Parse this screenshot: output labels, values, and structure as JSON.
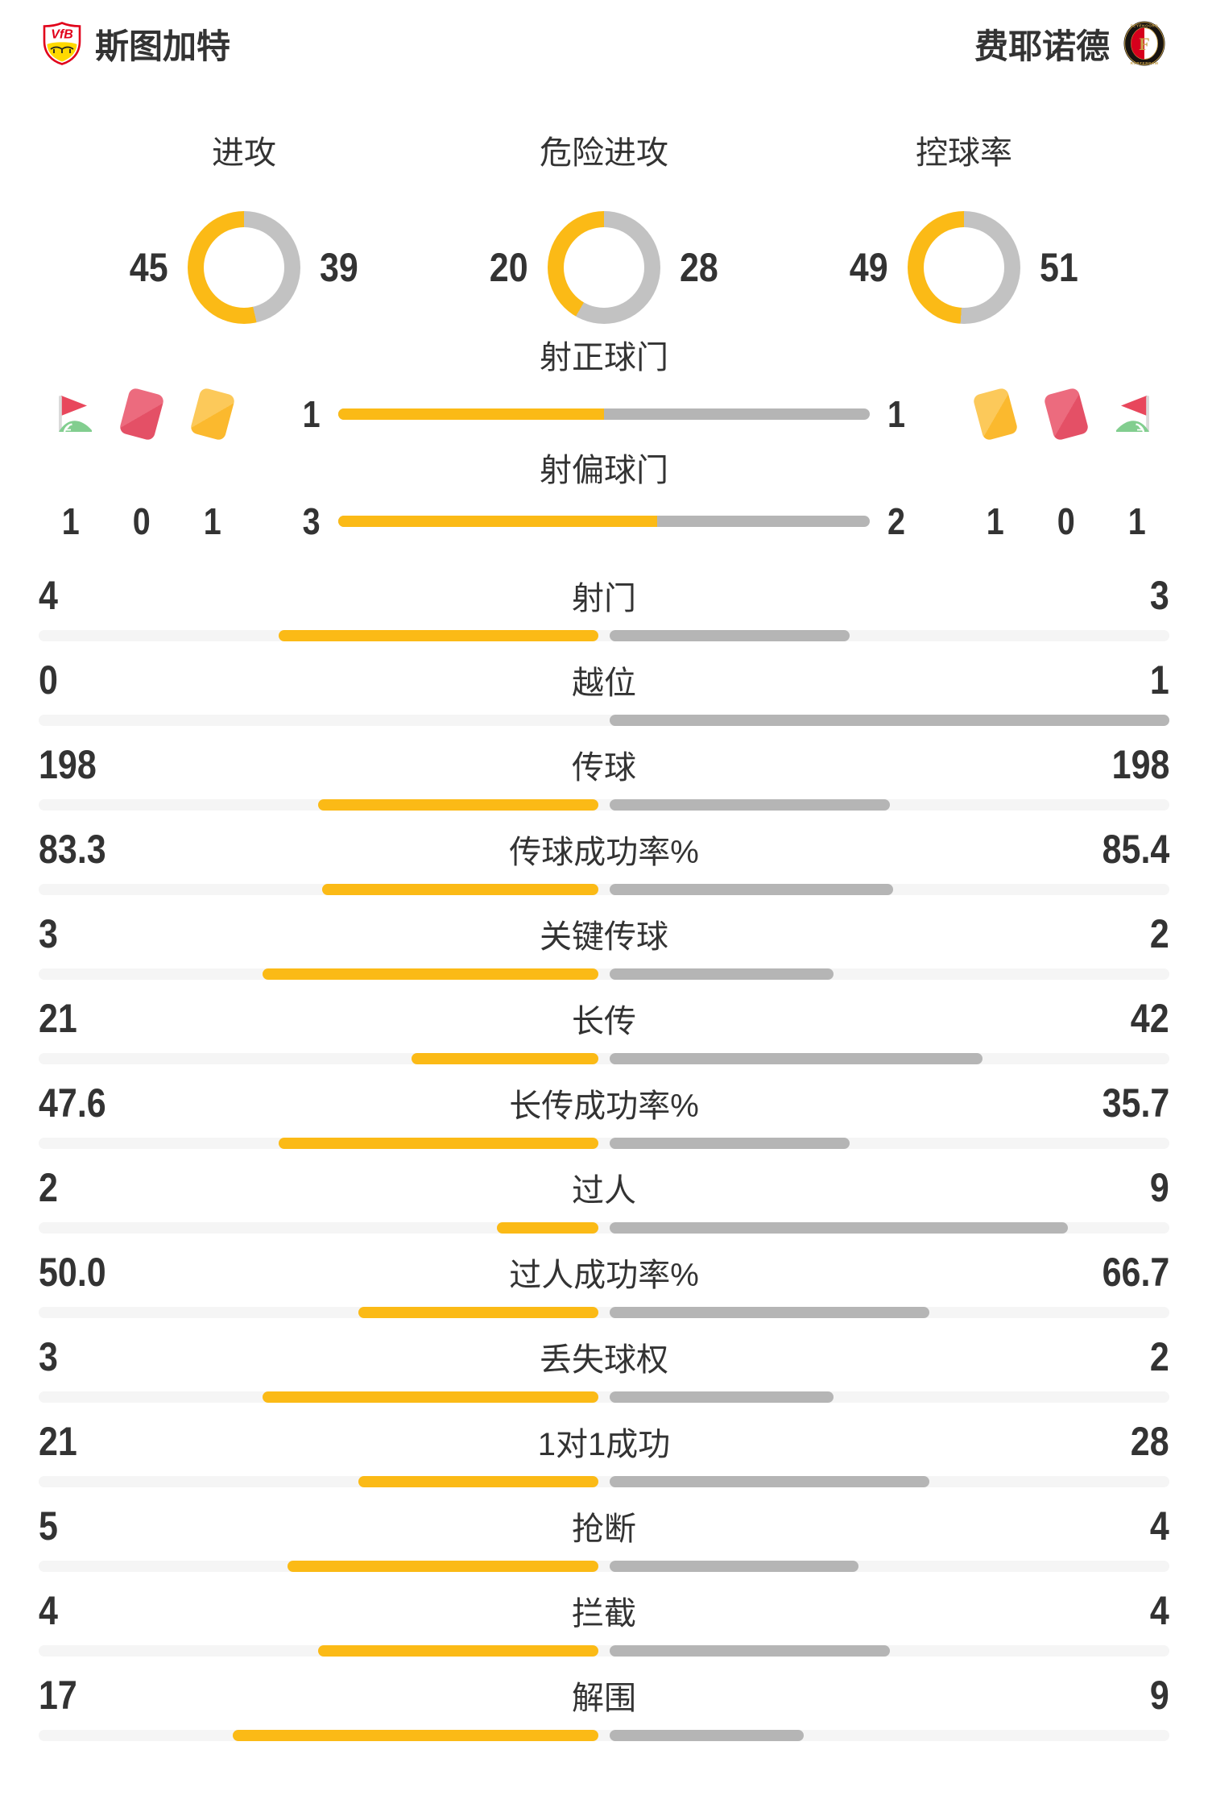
{
  "colors": {
    "home": "#FBBA16",
    "away": "#B5B5B5",
    "away_ring": "#C2C2C2",
    "track": "#F5F5F5",
    "text": "#333333",
    "red_card": "#E45066",
    "yellow_card": "#FBB92E",
    "flag_red": "#E8475C",
    "flag_green": "#82CE8F"
  },
  "header": {
    "home": {
      "name": "斯图加特"
    },
    "away": {
      "name": "费耶诺德"
    }
  },
  "logos": {
    "home_text": "VfB",
    "away_center": "F",
    "away_top": "FEYENOORD",
    "away_bottom": "ROTTERDAM"
  },
  "donuts": [
    {
      "label": "进攻",
      "home": 45,
      "away": 39
    },
    {
      "label": "危险进攻",
      "home": 20,
      "away": 28
    },
    {
      "label": "控球率",
      "home": 49,
      "away": 51
    }
  ],
  "shots": [
    {
      "label": "射正球门",
      "home": 1,
      "away": 1
    },
    {
      "label": "射偏球门",
      "home": 3,
      "away": 2
    }
  ],
  "discipline": {
    "home": {
      "corner_flags": 1,
      "red_cards": 0,
      "yellow_cards": 1
    },
    "away": {
      "yellow_cards": 1,
      "red_cards": 0,
      "corner_flags": 1
    }
  },
  "stats": [
    {
      "label": "射门",
      "home": "4",
      "away": "3"
    },
    {
      "label": "越位",
      "home": "0",
      "away": "1"
    },
    {
      "label": "传球",
      "home": "198",
      "away": "198"
    },
    {
      "label": "传球成功率%",
      "home": "83.3",
      "away": "85.4"
    },
    {
      "label": "关键传球",
      "home": "3",
      "away": "2"
    },
    {
      "label": "长传",
      "home": "21",
      "away": "42"
    },
    {
      "label": "长传成功率%",
      "home": "47.6",
      "away": "35.7"
    },
    {
      "label": "过人",
      "home": "2",
      "away": "9"
    },
    {
      "label": "过人成功率%",
      "home": "50.0",
      "away": "66.7"
    },
    {
      "label": "丢失球权",
      "home": "3",
      "away": "2"
    },
    {
      "label": "1对1成功",
      "home": "21",
      "away": "28"
    },
    {
      "label": "抢断",
      "home": "5",
      "away": "4"
    },
    {
      "label": "拦截",
      "home": "4",
      "away": "4"
    },
    {
      "label": "解围",
      "home": "17",
      "away": "9"
    }
  ],
  "chart_data": [
    {
      "type": "pie",
      "title": "进攻",
      "series": [
        {
          "name": "斯图加特",
          "value": 45
        },
        {
          "name": "费耶诺德",
          "value": 39
        }
      ],
      "colors": [
        "#FBBA16",
        "#C2C2C2"
      ]
    },
    {
      "type": "pie",
      "title": "危险进攻",
      "series": [
        {
          "name": "斯图加特",
          "value": 20
        },
        {
          "name": "费耶诺德",
          "value": 28
        }
      ],
      "colors": [
        "#FBBA16",
        "#C2C2C2"
      ]
    },
    {
      "type": "pie",
      "title": "控球率",
      "series": [
        {
          "name": "斯图加特",
          "value": 49
        },
        {
          "name": "费耶诺德",
          "value": 51
        }
      ],
      "colors": [
        "#FBBA16",
        "#C2C2C2"
      ]
    },
    {
      "type": "bar",
      "title": "比赛数据对比",
      "categories": [
        "射正球门",
        "射偏球门",
        "角球",
        "红牌",
        "黄牌",
        "射门",
        "越位",
        "传球",
        "传球成功率%",
        "关键传球",
        "长传",
        "长传成功率%",
        "过人",
        "过人成功率%",
        "丢失球权",
        "1对1成功",
        "抢断",
        "拦截",
        "解围"
      ],
      "series": [
        {
          "name": "斯图加特",
          "values": [
            1,
            3,
            1,
            0,
            1,
            4,
            0,
            198,
            83.3,
            3,
            21,
            47.6,
            2,
            50.0,
            3,
            21,
            5,
            4,
            17
          ]
        },
        {
          "name": "费耶诺德",
          "values": [
            1,
            2,
            1,
            0,
            1,
            3,
            1,
            198,
            85.4,
            2,
            42,
            35.7,
            9,
            66.7,
            2,
            28,
            4,
            4,
            9
          ]
        }
      ],
      "legend_position": "top",
      "grid": false
    }
  ]
}
